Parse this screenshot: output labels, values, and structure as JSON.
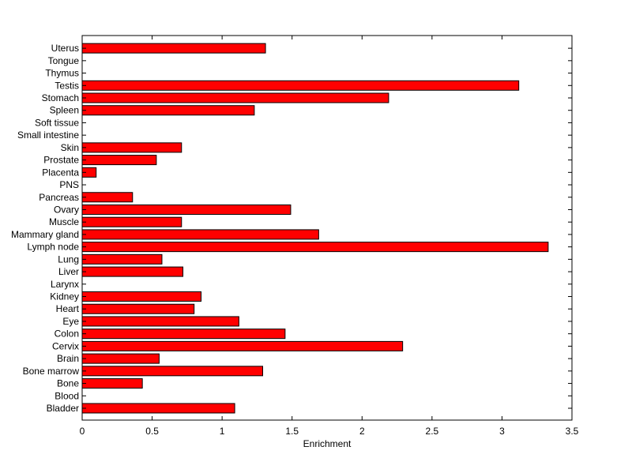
{
  "chart_data": {
    "type": "bar",
    "orientation": "horizontal",
    "xlabel": "Enrichment",
    "ylabel": "",
    "title": "",
    "xlim": [
      0,
      3.5
    ],
    "xticks": [
      0,
      0.5,
      1,
      1.5,
      2,
      2.5,
      3,
      3.5
    ],
    "xtick_labels": [
      "0",
      "0.5",
      "1",
      "1.5",
      "2",
      "2.5",
      "3",
      "3.5"
    ],
    "grid": false,
    "bar_color": "#ff0000",
    "categories": [
      "Bladder",
      "Blood",
      "Bone",
      "Bone marrow",
      "Brain",
      "Cervix",
      "Colon",
      "Eye",
      "Heart",
      "Kidney",
      "Larynx",
      "Liver",
      "Lung",
      "Lymph node",
      "Mammary gland",
      "Muscle",
      "Ovary",
      "Pancreas",
      "PNS",
      "Placenta",
      "Prostate",
      "Skin",
      "Small intestine",
      "Soft tissue",
      "Spleen",
      "Stomach",
      "Testis",
      "Thymus",
      "Tongue",
      "Uterus"
    ],
    "values": [
      1.09,
      0,
      0.43,
      1.29,
      0.55,
      2.29,
      1.45,
      1.12,
      0.8,
      0.85,
      0,
      0.72,
      0.57,
      3.33,
      1.69,
      0.71,
      1.49,
      0.36,
      0,
      0.1,
      0.53,
      0.71,
      0,
      0,
      1.23,
      2.19,
      3.12,
      0,
      0,
      1.31
    ]
  }
}
